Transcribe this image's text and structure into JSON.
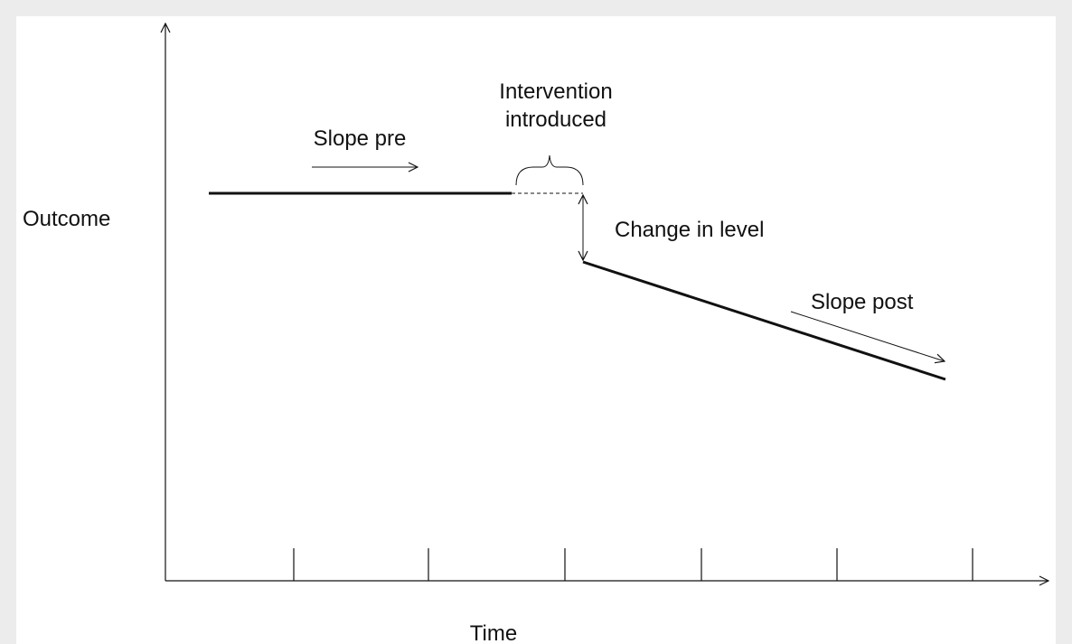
{
  "labels": {
    "y_axis": "Outcome",
    "x_axis": "Time",
    "slope_pre": "Slope pre",
    "intervention": [
      "Intervention",
      "introduced"
    ],
    "change_in_level": "Change in level",
    "slope_post": "Slope post"
  }
}
